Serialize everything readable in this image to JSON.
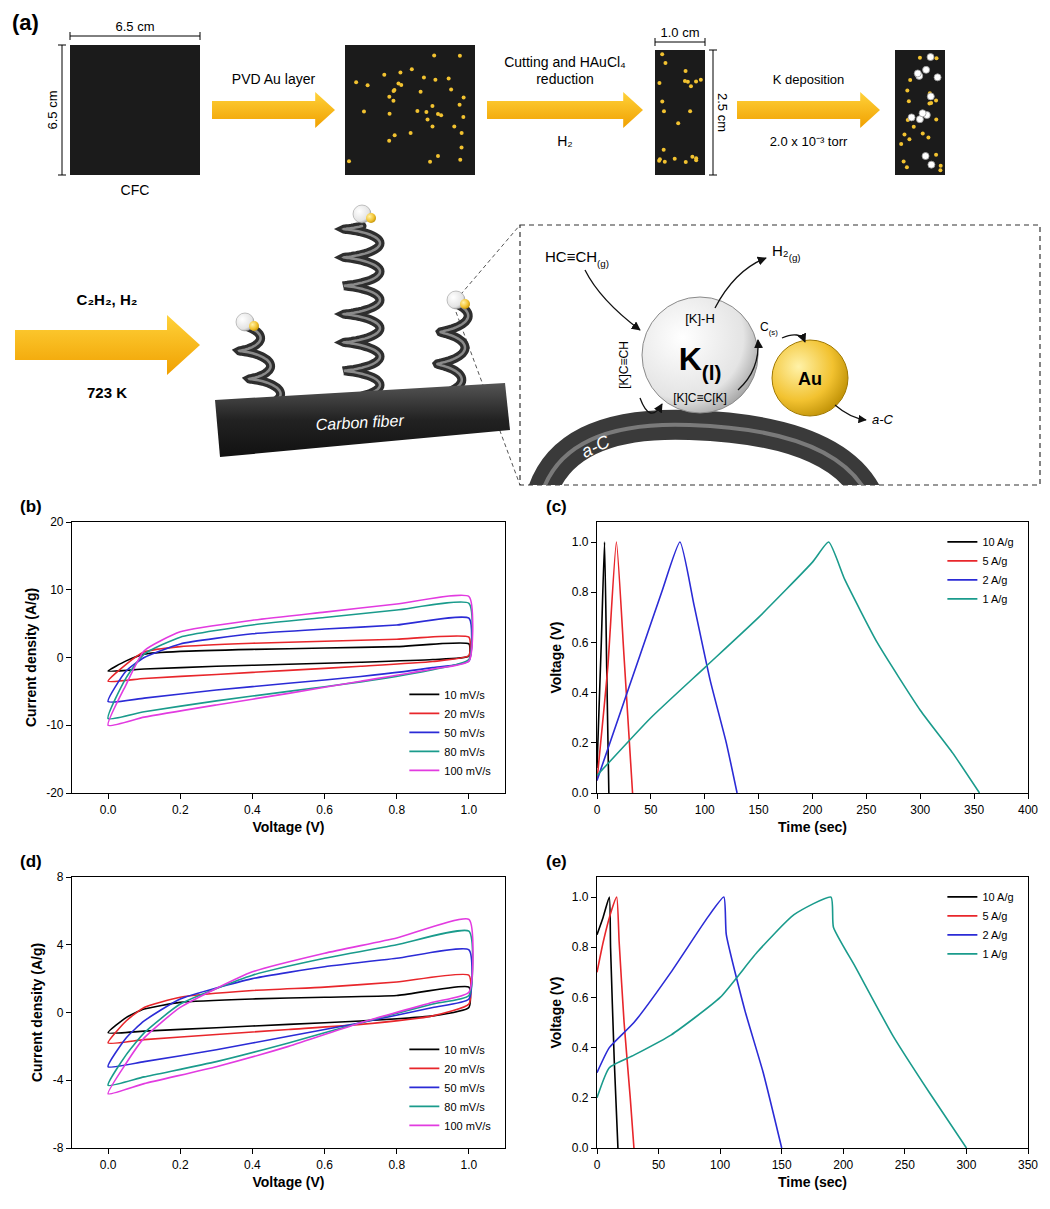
{
  "diagram": {
    "label": "(a)",
    "cfc": {
      "name": "CFC",
      "width_label": "6.5 cm",
      "height_label": "6.5 cm"
    },
    "arrows": [
      {
        "above": "PVD Au layer"
      },
      {
        "above": "Cutting and HAuCl₄ reduction",
        "below": "H₂"
      },
      {
        "above": "K deposition",
        "below": "2.0 x 10⁻³ torr"
      }
    ],
    "cut_sample": {
      "width_label": "1.0 cm",
      "height_label": "2.5 cm"
    },
    "growth": {
      "above": "C₂H₂, H₂",
      "below": "723 K",
      "substrate": "Carbon fiber"
    },
    "mechanism": {
      "reactant": {
        "text": "HC≡CH",
        "sub": "(g)"
      },
      "product": {
        "text": "H₂",
        "sub": "(g)"
      },
      "catalyst": {
        "text": "K",
        "sub": "(l)"
      },
      "promoter": "Au",
      "intermediates": [
        "[K]-H",
        "[K]C≡CH",
        "[K]C≡C[K]"
      ],
      "carbon": {
        "text": "C",
        "sub": "(s)"
      },
      "deposit": "a-C"
    }
  },
  "chart_data": [
    {
      "type": "line",
      "title": "(b)",
      "x_label": "Voltage (V)",
      "y_label": "Current density (A/g)",
      "x": [
        0,
        0.05,
        0.1,
        0.2,
        0.4,
        0.6,
        0.8,
        1.0,
        1.0,
        0.9,
        0.7,
        0.5,
        0.3,
        0.1,
        0
      ],
      "xlim": [
        -0.1,
        1.1
      ],
      "xticks": [
        {
          "value": 0,
          "label": "0.0"
        },
        {
          "value": 0.2,
          "label": "0.2"
        },
        {
          "value": 0.4,
          "label": "0.4"
        },
        {
          "value": 0.6,
          "label": "0.6"
        },
        {
          "value": 0.8,
          "label": "0.8"
        },
        {
          "value": 1.0,
          "label": "1.0"
        }
      ],
      "ylim": [
        -20,
        20
      ],
      "yticks": [
        -20,
        -10,
        0,
        10,
        20
      ],
      "grid": false,
      "legend": "lower right",
      "series": [
        {
          "name": "10 mV/s",
          "color": "#000000",
          "values": [
            -2,
            -0.5,
            0.5,
            0.9,
            1.2,
            1.4,
            1.6,
            2.0,
            0.2,
            -0.3,
            -0.7,
            -1.0,
            -1.3,
            -1.7,
            -2
          ]
        },
        {
          "name": "20 mV/s",
          "color": "#e8262b",
          "values": [
            -3.5,
            -1,
            0.8,
            1.6,
            2.1,
            2.4,
            2.7,
            3.0,
            0.3,
            -0.6,
            -1.3,
            -1.9,
            -2.5,
            -3.1,
            -3.5
          ]
        },
        {
          "name": "50 mV/s",
          "color": "#2b2bd6",
          "values": [
            -6.5,
            -2,
            0,
            2,
            3.5,
            4.2,
            4.8,
            5.8,
            -0.5,
            -1.5,
            -2.8,
            -3.8,
            -4.8,
            -6,
            -6.5
          ]
        },
        {
          "name": "80 mV/s",
          "color": "#1a9b8c",
          "values": [
            -9,
            -3,
            0.5,
            3,
            4.8,
            5.9,
            7,
            8,
            -0.3,
            -1.8,
            -3.6,
            -5,
            -6.4,
            -8,
            -9
          ]
        },
        {
          "name": "100 mV/s",
          "color": "#e23be0",
          "values": [
            -10,
            -4,
            1,
            3.8,
            5.5,
            6.7,
            7.9,
            9,
            -0.5,
            -1.7,
            -3.5,
            -5.3,
            -7,
            -8.8,
            -10
          ]
        }
      ]
    },
    {
      "type": "line",
      "title": "(c)",
      "x_label": "Time (sec)",
      "y_label": "Voltage (V)",
      "xlim": [
        0,
        400
      ],
      "xticks": [
        0,
        50,
        100,
        150,
        200,
        250,
        300,
        350,
        400
      ],
      "ylim": [
        0,
        1.08
      ],
      "yticks": [
        {
          "value": 0,
          "label": "0.0"
        },
        {
          "value": 0.2,
          "label": "0.2"
        },
        {
          "value": 0.4,
          "label": "0.4"
        },
        {
          "value": 0.6,
          "label": "0.6"
        },
        {
          "value": 0.8,
          "label": "0.8"
        },
        {
          "value": 1.0,
          "label": "1.0"
        }
      ],
      "grid": false,
      "legend": "upper right",
      "series": [
        {
          "name": "10 A/g",
          "color": "#000000",
          "x": [
            0,
            4,
            7,
            9,
            11
          ],
          "values": [
            0.1,
            0.6,
            1.0,
            0.5,
            0
          ]
        },
        {
          "name": "5 A/g",
          "color": "#e8262b",
          "x": [
            0,
            10,
            18,
            25,
            33
          ],
          "values": [
            0.05,
            0.5,
            1.0,
            0.55,
            0
          ]
        },
        {
          "name": "2 A/g",
          "color": "#2b2bd6",
          "x": [
            0,
            20,
            40,
            60,
            77,
            90,
            105,
            120,
            130
          ],
          "values": [
            0.05,
            0.3,
            0.55,
            0.8,
            1.0,
            0.75,
            0.45,
            0.2,
            0
          ]
        },
        {
          "name": "1 A/g",
          "color": "#1a9b8c",
          "x": [
            0,
            50,
            100,
            150,
            200,
            215,
            230,
            260,
            300,
            330,
            355
          ],
          "values": [
            0.07,
            0.3,
            0.5,
            0.7,
            0.92,
            1.0,
            0.85,
            0.6,
            0.33,
            0.16,
            0
          ]
        }
      ]
    },
    {
      "type": "line",
      "title": "(d)",
      "x_label": "Voltage (V)",
      "y_label": "Current density (A/g)",
      "x": [
        0,
        0.05,
        0.1,
        0.2,
        0.4,
        0.6,
        0.8,
        1.0,
        1.0,
        0.9,
        0.7,
        0.5,
        0.3,
        0.1,
        0
      ],
      "xlim": [
        -0.1,
        1.1
      ],
      "xticks": [
        {
          "value": 0,
          "label": "0.0"
        },
        {
          "value": 0.2,
          "label": "0.2"
        },
        {
          "value": 0.4,
          "label": "0.4"
        },
        {
          "value": 0.6,
          "label": "0.6"
        },
        {
          "value": 0.8,
          "label": "0.8"
        },
        {
          "value": 1.0,
          "label": "1.0"
        }
      ],
      "ylim": [
        -8,
        8
      ],
      "yticks": [
        -8,
        -4,
        0,
        4,
        8
      ],
      "grid": false,
      "legend": "lower right",
      "series": [
        {
          "name": "10 mV/s",
          "color": "#000000",
          "values": [
            -1.2,
            -0.3,
            0.2,
            0.6,
            0.8,
            0.9,
            1.0,
            1.5,
            0.3,
            -0.2,
            -0.5,
            -0.7,
            -0.9,
            -1.1,
            -1.2
          ]
        },
        {
          "name": "20 mV/s",
          "color": "#e8262b",
          "values": [
            -1.8,
            -0.5,
            0.3,
            0.9,
            1.3,
            1.5,
            1.8,
            2.2,
            0.5,
            -0.2,
            -0.7,
            -1.0,
            -1.3,
            -1.6,
            -1.8
          ]
        },
        {
          "name": "50 mV/s",
          "color": "#2b2bd6",
          "values": [
            -3.2,
            -1.5,
            -0.5,
            0.8,
            2.0,
            2.7,
            3.2,
            3.7,
            0.8,
            0.3,
            -0.6,
            -1.4,
            -2.2,
            -2.9,
            -3.2
          ]
        },
        {
          "name": "80 mV/s",
          "color": "#1a9b8c",
          "values": [
            -4.3,
            -2.5,
            -1.2,
            0.5,
            2.2,
            3.2,
            4.0,
            4.8,
            1.0,
            0.5,
            -0.6,
            -1.8,
            -2.9,
            -3.8,
            -4.3
          ]
        },
        {
          "name": "100 mV/s",
          "color": "#e23be0",
          "values": [
            -4.8,
            -3,
            -1.5,
            0.3,
            2.4,
            3.5,
            4.4,
            5.5,
            1.2,
            0.6,
            -0.6,
            -2.0,
            -3.2,
            -4.2,
            -4.8
          ]
        }
      ]
    },
    {
      "type": "line",
      "title": "(e)",
      "x_label": "Time (sec)",
      "y_label": "Voltage (V)",
      "xlim": [
        0,
        350
      ],
      "xticks": [
        0,
        50,
        100,
        150,
        200,
        250,
        300,
        350
      ],
      "ylim": [
        0,
        1.08
      ],
      "yticks": [
        {
          "value": 0,
          "label": "0.0"
        },
        {
          "value": 0.2,
          "label": "0.2"
        },
        {
          "value": 0.4,
          "label": "0.4"
        },
        {
          "value": 0.6,
          "label": "0.6"
        },
        {
          "value": 0.8,
          "label": "0.8"
        },
        {
          "value": 1.0,
          "label": "1.0"
        }
      ],
      "grid": false,
      "legend": "upper right",
      "series": [
        {
          "name": "10 A/g",
          "color": "#000000",
          "x": [
            0,
            5,
            10,
            11,
            14,
            17
          ],
          "values": [
            0.85,
            0.92,
            1.0,
            0.8,
            0.35,
            0
          ]
        },
        {
          "name": "5 A/g",
          "color": "#e8262b",
          "x": [
            0,
            5,
            12,
            16,
            18,
            22,
            27,
            30
          ],
          "values": [
            0.7,
            0.82,
            0.95,
            1.0,
            0.82,
            0.5,
            0.2,
            0
          ]
        },
        {
          "name": "2 A/g",
          "color": "#2b2bd6",
          "x": [
            0,
            10,
            30,
            60,
            90,
            103,
            105,
            120,
            135,
            150
          ],
          "values": [
            0.3,
            0.4,
            0.5,
            0.7,
            0.92,
            1.0,
            0.85,
            0.55,
            0.3,
            0
          ]
        },
        {
          "name": "1 A/g",
          "color": "#1a9b8c",
          "x": [
            0,
            10,
            30,
            60,
            100,
            130,
            160,
            190,
            192,
            210,
            240,
            270,
            300
          ],
          "values": [
            0.2,
            0.32,
            0.37,
            0.45,
            0.6,
            0.78,
            0.93,
            1.0,
            0.88,
            0.72,
            0.45,
            0.22,
            0
          ]
        }
      ]
    }
  ]
}
